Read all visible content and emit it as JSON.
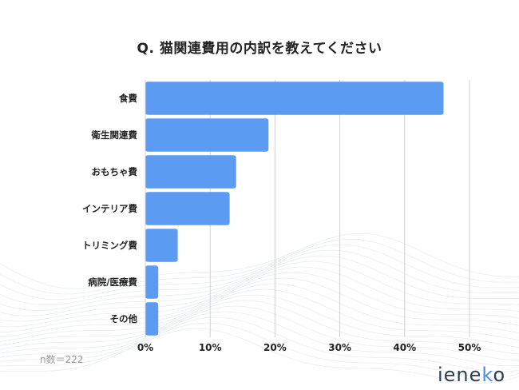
{
  "title": "Q. 猫関連費用の内訳を教えてください",
  "sample_size": "n数＝222",
  "logo": {
    "main": "iene",
    "accent": "k",
    "tail": "o",
    "accent_color": "#4a90e2"
  },
  "colors": {
    "bar": "#5b9cf2",
    "grid": "#d0d0d0",
    "text": "#222222"
  },
  "chart_data": {
    "type": "bar",
    "orientation": "horizontal",
    "categories": [
      "食費",
      "衛生関連費",
      "おもちゃ費",
      "インテリア費",
      "トリミング費",
      "病院/医療費",
      "その他"
    ],
    "values": [
      46,
      19,
      14,
      13,
      5,
      2,
      2
    ],
    "xlim": [
      0,
      50
    ],
    "xticks": [
      0,
      10,
      20,
      30,
      40,
      50
    ],
    "xtick_labels": [
      "0%",
      "10%",
      "20%",
      "30%",
      "40%",
      "50%"
    ],
    "grid": true,
    "legend": "none"
  }
}
